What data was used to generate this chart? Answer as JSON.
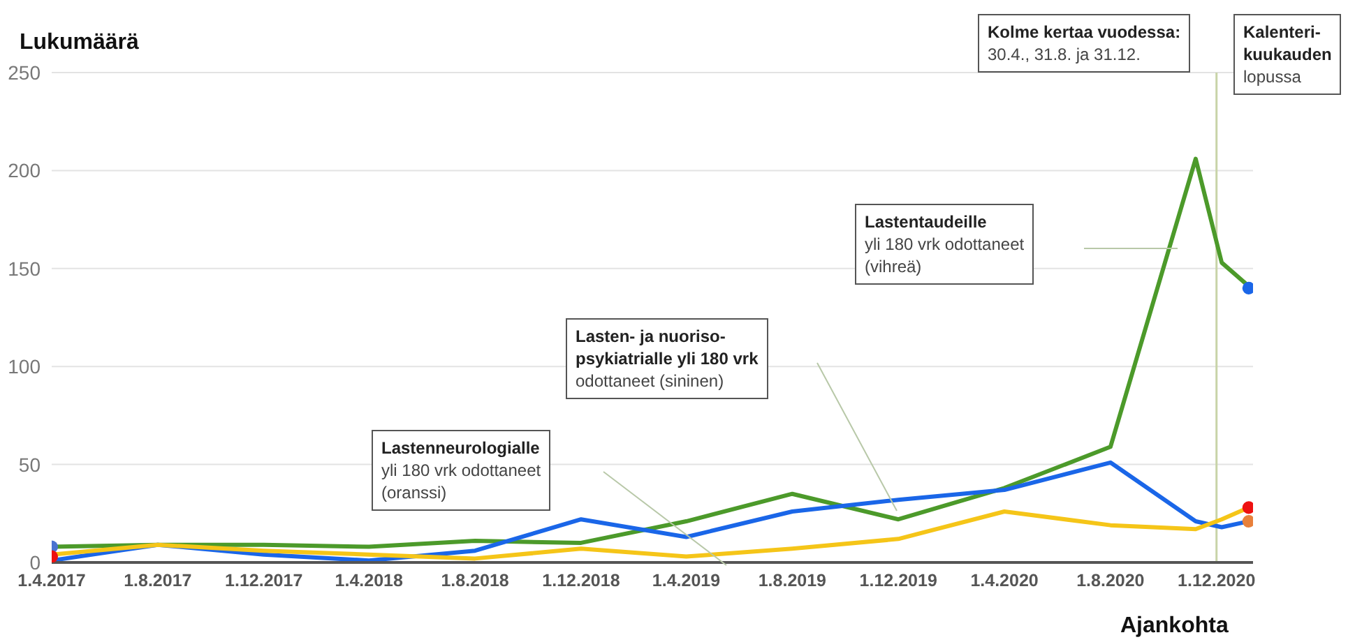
{
  "chart_data": {
    "type": "line",
    "ylabel": "Lukumäärä",
    "xlabel": "Ajankohta",
    "xlim": [
      "2017-04-01",
      "2021-01-12"
    ],
    "xticks": [
      {
        "value": "2017-04-01",
        "label": "1.4.2017"
      },
      {
        "value": "2017-08-01",
        "label": "1.8.2017"
      },
      {
        "value": "2017-12-01",
        "label": "1.12.2017"
      },
      {
        "value": "2018-04-01",
        "label": "1.4.2018"
      },
      {
        "value": "2018-08-01",
        "label": "1.8.2018"
      },
      {
        "value": "2018-12-01",
        "label": "1.12.2018"
      },
      {
        "value": "2019-04-01",
        "label": "1.4.2019"
      },
      {
        "value": "2019-08-01",
        "label": "1.8.2019"
      },
      {
        "value": "2019-12-01",
        "label": "1.12.2019"
      },
      {
        "value": "2020-04-01",
        "label": "1.4.2020"
      },
      {
        "value": "2020-08-01",
        "label": "1.8.2020"
      },
      {
        "value": "2020-12-01",
        "label": "1.12.2020"
      }
    ],
    "ylim": [
      0,
      250
    ],
    "yticks": [
      0,
      50,
      100,
      150,
      200,
      250
    ],
    "x": [
      "2017-04-01",
      "2017-08-01",
      "2017-12-01",
      "2018-04-01",
      "2018-08-01",
      "2018-12-01",
      "2019-04-01",
      "2019-08-01",
      "2019-12-01",
      "2020-04-01",
      "2020-08-01",
      "2020-11-07",
      "2020-12-07",
      "2021-01-07"
    ],
    "series": [
      {
        "color": "#4c9a2a",
        "values": [
          8,
          9,
          9,
          8,
          11,
          10,
          21,
          35,
          22,
          38,
          59,
          206,
          153,
          141
        ]
      },
      {
        "color": "#1a66e8",
        "values": [
          1,
          9,
          4,
          1,
          6,
          22,
          13,
          26,
          32,
          37,
          51,
          21,
          18,
          21
        ]
      },
      {
        "color": "#f5c518",
        "values": [
          4,
          9,
          6,
          4,
          2,
          7,
          3,
          7,
          12,
          26,
          19,
          17,
          22,
          28
        ]
      },
      {
        "type": "scatter",
        "marker": "circle",
        "x": [
          "2017-04-01",
          "2017-04-01",
          "2021-01-07",
          "2021-01-07",
          "2021-01-07"
        ],
        "values": [
          8,
          3,
          140,
          28,
          21
        ],
        "colors": [
          "#4a72d0",
          "#ee1111",
          "#1a66e8",
          "#ee1111",
          "#e8803a"
        ]
      }
    ],
    "marker": "none",
    "line_style": "solid",
    "grid": "y",
    "legend": false,
    "ref_lines": [
      {
        "axis": "x",
        "value": "2020-12-01",
        "color": "#c8d4a8"
      }
    ],
    "annotations": [
      "Kolme kertaa vuodessa:\n30.4., 31.8. ja 31.12.",
      "Kalenteri-\nkuukauden\nlopussa",
      "Lastentaudeille\nyli 180 vrk odottaneet\n(vihreä)",
      "Lasten- ja nuoriso-\npsykiatrialle yli 180 vrk\nodottaneet (sininen)",
      "Lastenneurologialle\nyli 180 vrk odottaneet\n(oranssi)"
    ]
  }
}
